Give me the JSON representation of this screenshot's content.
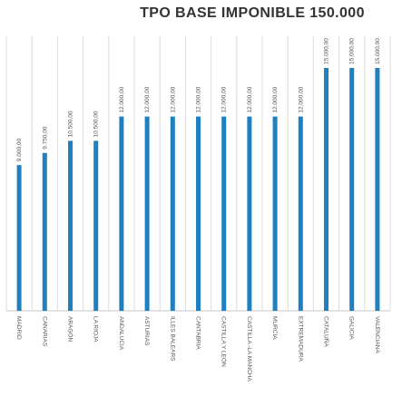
{
  "chart_data": {
    "type": "bar",
    "title": "TPO BASE IMPONIBLE 150.000",
    "xlabel": "",
    "ylabel": "",
    "ylim": [
      0,
      15000
    ],
    "grid": true,
    "legend": "none",
    "bar_color": "#1e7fc1",
    "grid_color": "#dcdcdc",
    "categories": [
      "MADRID",
      "CANARIAS",
      "ARAGÓN",
      "LA RIOJA",
      "ANDALUCIA",
      "ASTURIAS",
      "ILLES BALEARS",
      "CANTABRIA",
      "CASTILLA Y LEÓN",
      "CASTILLA -LA MANCHA",
      "MURCIA",
      "EXTREMADURA",
      "CATALUÑA",
      "GALICIA",
      "VALENCIANA"
    ],
    "values": [
      9000,
      9750,
      10500,
      10500,
      12000,
      12000,
      12000,
      12000,
      12000,
      12000,
      12000,
      12000,
      15000,
      15000,
      15000
    ],
    "data_labels": [
      "9.000,00",
      "9.750,00",
      "10.500,00",
      "10.500,00",
      "12.000,00",
      "12.000,00",
      "12.000,00",
      "12.000,00",
      "12.000,00",
      "12.000,00",
      "12.000,00",
      "12.000,00",
      "15.000,00",
      "15.000,00",
      "15.000,00"
    ]
  }
}
